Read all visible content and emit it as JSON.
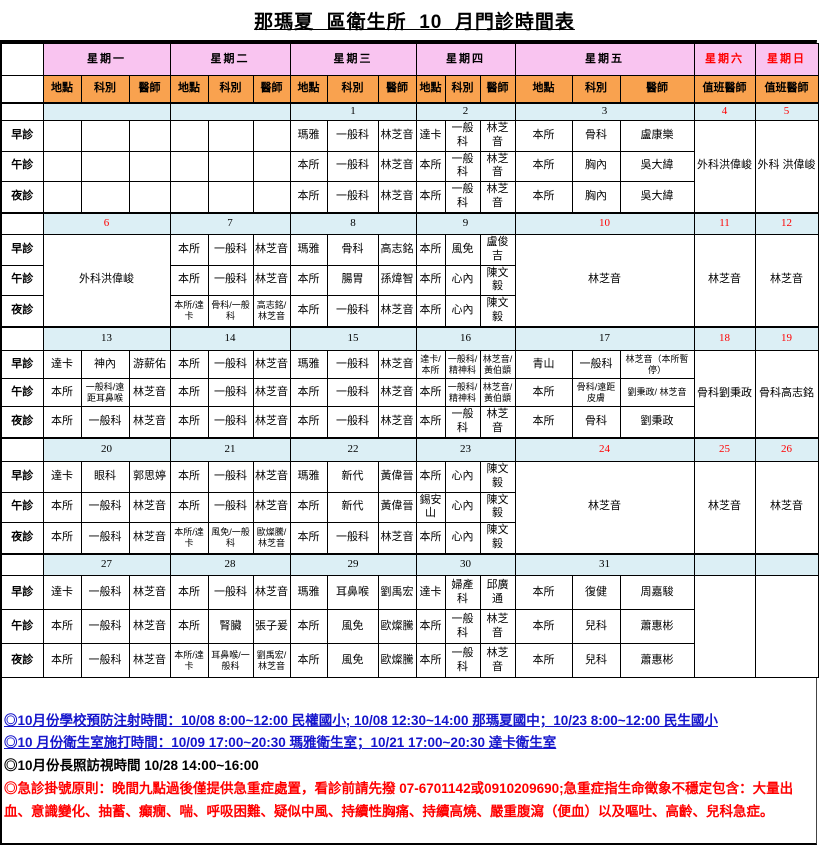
{
  "title": "那瑪夏  區衛生所  10  月門診時間表",
  "colors": {
    "day_header_pink": "#F9C4F0",
    "subheader_orange": "#F9A24F",
    "date_row_blue": "#DCEFF5",
    "holiday_red": "#FF0000",
    "note_link_blue": "#1515CC"
  },
  "table": {
    "day_headers": [
      {
        "label": "星期一",
        "red": false
      },
      {
        "label": "星期二",
        "red": false
      },
      {
        "label": "星期三",
        "red": false
      },
      {
        "label": "星期四",
        "red": false
      },
      {
        "label": "星期五",
        "red": false
      },
      {
        "label": "星期六",
        "red": true
      },
      {
        "label": "星期日",
        "red": true
      }
    ],
    "sub_headers": [
      "地點",
      "科別",
      "醫師"
    ],
    "duty_header": "值班醫師",
    "time_labels": [
      "早診",
      "午診",
      "夜診"
    ],
    "weeks": [
      {
        "dates": [
          "",
          "",
          "1",
          "2",
          "3",
          "4",
          "5"
        ],
        "red": [
          false,
          false,
          false,
          false,
          false,
          true,
          true
        ],
        "mon": [
          [
            "",
            "",
            ""
          ],
          [
            "",
            "",
            ""
          ],
          [
            "",
            "",
            ""
          ]
        ],
        "tue": [
          [
            "",
            "",
            ""
          ],
          [
            "",
            "",
            ""
          ],
          [
            "",
            "",
            ""
          ]
        ],
        "wed": [
          [
            "瑪雅",
            "一般科",
            "林芝音"
          ],
          [
            "本所",
            "一般科",
            "林芝音"
          ],
          [
            "本所",
            "一般科",
            "林芝音"
          ]
        ],
        "thu": [
          [
            "達卡",
            "一般科",
            "林芝音"
          ],
          [
            "本所",
            "一般科",
            "林芝音"
          ],
          [
            "本所",
            "一般科",
            "林芝音"
          ]
        ],
        "fri": [
          [
            "本所",
            "骨科",
            "盧康樂"
          ],
          [
            "本所",
            "胸內",
            "吳大緯"
          ],
          [
            "本所",
            "胸內",
            "吳大緯"
          ]
        ],
        "sat": "外科洪偉峻",
        "sun": "外科 洪偉峻"
      },
      {
        "dates": [
          "6",
          "7",
          "8",
          "9",
          "10",
          "11",
          "12"
        ],
        "red": [
          true,
          false,
          false,
          false,
          true,
          true,
          true
        ],
        "mon": "外科洪偉峻",
        "tue": [
          [
            "本所",
            "一般科",
            "林芝音"
          ],
          [
            "本所",
            "一般科",
            "林芝音"
          ],
          [
            "本所/達卡",
            "骨科/一般科",
            "高志銘/林芝音"
          ]
        ],
        "wed": [
          [
            "瑪雅",
            "骨科",
            "高志銘"
          ],
          [
            "本所",
            "腸胃",
            "孫煒智"
          ],
          [
            "本所",
            "一般科",
            "林芝音"
          ]
        ],
        "thu": [
          [
            "本所",
            "風免",
            "盧俊吉"
          ],
          [
            "本所",
            "心內",
            "陳文毅"
          ],
          [
            "本所",
            "心內",
            "陳文毅"
          ]
        ],
        "fri": "林芝音",
        "sat": "林芝音",
        "sun": "林芝音"
      },
      {
        "dates": [
          "13",
          "14",
          "15",
          "16",
          "17",
          "18",
          "19"
        ],
        "red": [
          false,
          false,
          false,
          false,
          false,
          true,
          true
        ],
        "mon": [
          [
            "達卡",
            "神內",
            "游薪佑"
          ],
          [
            "本所",
            "一般科/遠距耳鼻喉",
            "林芝音"
          ],
          [
            "本所",
            "一般科",
            "林芝音"
          ]
        ],
        "tue": [
          [
            "本所",
            "一般科",
            "林芝音"
          ],
          [
            "本所",
            "一般科",
            "林芝音"
          ],
          [
            "本所",
            "一般科",
            "林芝音"
          ]
        ],
        "wed": [
          [
            "瑪雅",
            "一般科",
            "林芝音"
          ],
          [
            "本所",
            "一般科",
            "林芝音"
          ],
          [
            "本所",
            "一般科",
            "林芝音"
          ]
        ],
        "thu": [
          [
            "達卡/本所",
            "一般科/精神科",
            "林芝音/黃伯顗"
          ],
          [
            "本所",
            "一般科/精神科",
            "林芝音/黃伯顗"
          ],
          [
            "本所",
            "一般科",
            "林芝音"
          ]
        ],
        "fri": [
          [
            "青山",
            "一般科",
            "林芝音（本所暫停）"
          ],
          [
            "本所",
            "骨科/遠距皮膚",
            "劉秉政/ 林芝音"
          ],
          [
            "本所",
            "骨科",
            "劉秉政"
          ]
        ],
        "sat": "骨科劉秉政",
        "sun": "骨科高志銘"
      },
      {
        "dates": [
          "20",
          "21",
          "22",
          "23",
          "24",
          "25",
          "26"
        ],
        "red": [
          false,
          false,
          false,
          false,
          true,
          true,
          true
        ],
        "mon": [
          [
            "達卡",
            "眼科",
            "郭思婷"
          ],
          [
            "本所",
            "一般科",
            "林芝音"
          ],
          [
            "本所",
            "一般科",
            "林芝音"
          ]
        ],
        "tue": [
          [
            "本所",
            "一般科",
            "林芝音"
          ],
          [
            "本所",
            "一般科",
            "林芝音"
          ],
          [
            "本所/達卡",
            "風免/一般科",
            "歐燦騰/林芝音"
          ]
        ],
        "wed": [
          [
            "瑪雅",
            "新代",
            "黃偉晉"
          ],
          [
            "本所",
            "新代",
            "黃偉晉"
          ],
          [
            "本所",
            "一般科",
            "林芝音"
          ]
        ],
        "thu": [
          [
            "本所",
            "心內",
            "陳文毅"
          ],
          [
            "錫安山",
            "心內",
            "陳文毅"
          ],
          [
            "本所",
            "心內",
            "陳文毅"
          ]
        ],
        "fri": "林芝音",
        "sat": "林芝音",
        "sun": "林芝音"
      },
      {
        "dates": [
          "27",
          "28",
          "29",
          "30",
          "31",
          "",
          ""
        ],
        "red": [
          false,
          false,
          false,
          false,
          false,
          false,
          false
        ],
        "mon": [
          [
            "達卡",
            "一般科",
            "林芝音"
          ],
          [
            "本所",
            "一般科",
            "林芝音"
          ],
          [
            "本所",
            "一般科",
            "林芝音"
          ]
        ],
        "tue": [
          [
            "本所",
            "一般科",
            "林芝音"
          ],
          [
            "本所",
            "腎臟",
            "張子爰"
          ],
          [
            "本所/達卡",
            "耳鼻喉/一般科",
            "劉禹宏/林芝音"
          ]
        ],
        "wed": [
          [
            "瑪雅",
            "耳鼻喉",
            "劉禹宏"
          ],
          [
            "本所",
            "風免",
            "歐燦騰"
          ],
          [
            "本所",
            "風免",
            "歐燦騰"
          ]
        ],
        "thu": [
          [
            "達卡",
            "婦產科",
            "邱廣通"
          ],
          [
            "本所",
            "一般科",
            "林芝音"
          ],
          [
            "本所",
            "一般科",
            "林芝音"
          ]
        ],
        "fri": [
          [
            "本所",
            "復健",
            "周嘉駿"
          ],
          [
            "本所",
            "兒科",
            "蕭惠彬"
          ],
          [
            "本所",
            "兒科",
            "蕭惠彬"
          ]
        ],
        "sat": "",
        "sun": ""
      }
    ]
  },
  "notes": [
    "◎10月份學校預防注射時間：10/08 8:00~12:00 民權國小; 10/08 12:30~14:00 那瑪夏國中；10/23  8:00~12:00 民生國小",
    "◎10 月份衛生室施打時間：10/09 17:00~20:30 瑪雅衛生室；10/21 17:00~20:30 達卡衛生室",
    "◎10月份長照訪視時間 10/28 14:00~16:00",
    "◎急診掛號原則：晚間九點過後僅提供急重症處置，看診前請先撥 07-6701142或0910209690;急重症指生命徵象不穩定包含：大量出血、意識變化、抽蓄、癲癇、喘、呼吸困難、疑似中風、持續性胸痛、持續高燒、嚴重腹瀉（便血）以及嘔吐、高齡、兒科急症。"
  ]
}
